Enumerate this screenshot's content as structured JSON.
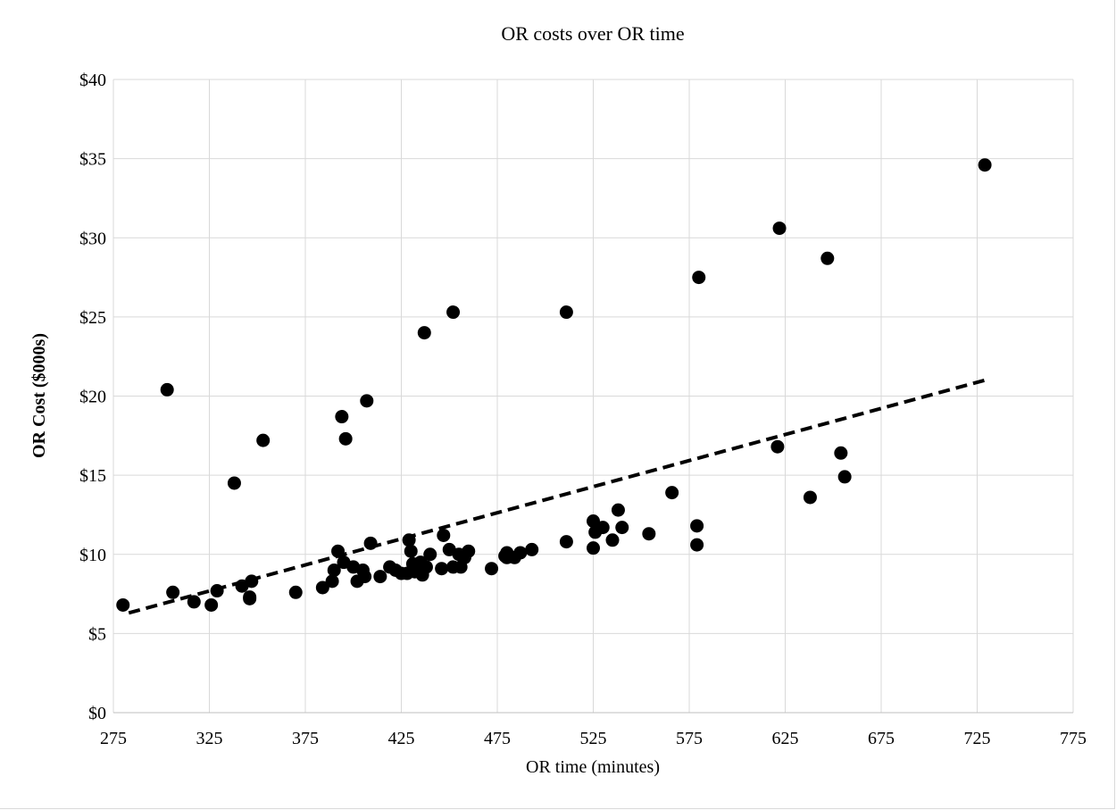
{
  "chart_data": {
    "type": "scatter",
    "title": "OR costs over OR time",
    "xlabel": "OR time (minutes)",
    "ylabel": "OR Cost ($000s)",
    "xlim": [
      275,
      775
    ],
    "ylim": [
      0,
      40
    ],
    "x_ticks": [
      275,
      325,
      375,
      425,
      475,
      525,
      575,
      625,
      675,
      725,
      775
    ],
    "x_tick_labels": [
      "275",
      "325",
      "375",
      "425",
      "475",
      "525",
      "575",
      "625",
      "675",
      "725",
      "775"
    ],
    "y_ticks": [
      0,
      5,
      10,
      15,
      20,
      25,
      30,
      35,
      40
    ],
    "y_tick_labels": [
      "$0",
      "$5",
      "$10",
      "$15",
      "$20",
      "$25",
      "$30",
      "$35",
      "$40"
    ],
    "grid": true,
    "point_color": "#000000",
    "series": [
      {
        "points": [
          [
            280,
            6.8
          ],
          [
            303,
            20.4
          ],
          [
            306,
            7.6
          ],
          [
            317,
            7.0
          ],
          [
            326,
            6.8
          ],
          [
            329,
            7.7
          ],
          [
            338,
            14.5
          ],
          [
            342,
            8.0
          ],
          [
            346,
            7.2
          ],
          [
            346,
            7.3
          ],
          [
            347,
            8.3
          ],
          [
            353,
            17.2
          ],
          [
            370,
            7.6
          ],
          [
            384,
            7.9
          ],
          [
            389,
            8.3
          ],
          [
            390,
            9.0
          ],
          [
            392,
            10.2
          ],
          [
            394,
            18.7
          ],
          [
            395,
            9.5
          ],
          [
            396,
            17.3
          ],
          [
            400,
            9.2
          ],
          [
            402,
            8.3
          ],
          [
            405,
            9.0
          ],
          [
            406,
            8.6
          ],
          [
            407,
            19.7
          ],
          [
            409,
            10.7
          ],
          [
            414,
            8.6
          ],
          [
            419,
            9.2
          ],
          [
            422,
            9.0
          ],
          [
            425,
            8.8
          ],
          [
            428,
            8.8
          ],
          [
            429,
            10.9
          ],
          [
            430,
            10.2
          ],
          [
            431,
            9.4
          ],
          [
            432,
            8.9
          ],
          [
            435,
            9.5
          ],
          [
            436,
            8.7
          ],
          [
            437,
            24.0
          ],
          [
            438,
            9.2
          ],
          [
            440,
            10.0
          ],
          [
            446,
            9.1
          ],
          [
            447,
            11.2
          ],
          [
            450,
            10.3
          ],
          [
            452,
            25.3
          ],
          [
            452,
            9.2
          ],
          [
            455,
            10.0
          ],
          [
            456,
            9.2
          ],
          [
            458,
            9.8
          ],
          [
            460,
            10.2
          ],
          [
            472,
            9.1
          ],
          [
            479,
            9.9
          ],
          [
            480,
            10.1
          ],
          [
            480,
            9.8
          ],
          [
            484,
            9.8
          ],
          [
            487,
            10.1
          ],
          [
            493,
            10.3
          ],
          [
            511,
            10.8
          ],
          [
            511,
            25.3
          ],
          [
            525,
            10.4
          ],
          [
            525,
            12.1
          ],
          [
            526,
            11.4
          ],
          [
            530,
            11.7
          ],
          [
            535,
            10.9
          ],
          [
            538,
            12.8
          ],
          [
            540,
            11.7
          ],
          [
            554,
            11.3
          ],
          [
            566,
            13.9
          ],
          [
            579,
            10.6
          ],
          [
            579,
            11.8
          ],
          [
            580,
            27.5
          ],
          [
            621,
            16.8
          ],
          [
            622,
            30.6
          ],
          [
            638,
            13.6
          ],
          [
            647,
            28.7
          ],
          [
            654,
            16.4
          ],
          [
            656,
            14.9
          ],
          [
            729,
            34.6
          ]
        ]
      }
    ],
    "trendline": {
      "style": "dashed",
      "from": [
        283,
        6.3
      ],
      "to": [
        729,
        21.0
      ]
    }
  }
}
